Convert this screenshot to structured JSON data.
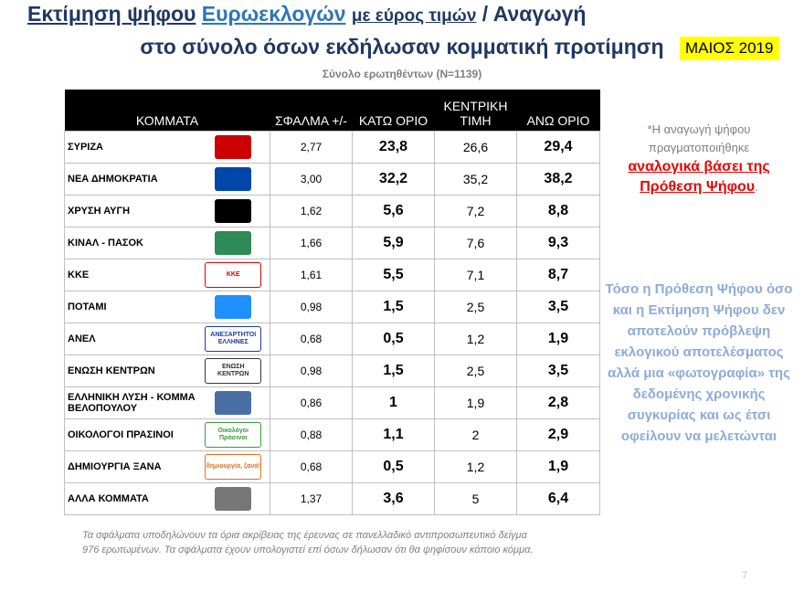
{
  "header": {
    "title_part1": "Εκτίμηση ψήφου",
    "title_part2": "Ευρωεκλογών",
    "title_part3": "με εύρος τιμών",
    "title_part4": "/ Αναγωγή",
    "title_line2": "στο σύνολο όσων εκδήλωσαν κομματική προτίμηση",
    "badge": "ΜΑΙΟΣ 2019",
    "subtitle": "Σύνολο ερωτηθέντων (Ν=1139)"
  },
  "table": {
    "columns": [
      "ΚΟΜΜΑΤΑ",
      "ΣΦΑΛΜΑ +/-",
      "ΚΑΤΩ ΟΡΙΟ",
      "ΚΕΝΤΡΙΚΗ ΤΙΜΗ",
      "ΑΝΩ ΟΡΙΟ"
    ],
    "rows": [
      {
        "name": "ΣΥΡΙΖΑ",
        "error": "2,77",
        "low": "23,8",
        "mid": "26,6",
        "high": "29,4"
      },
      {
        "name": "ΝΕΑ ΔΗΜΟΚΡΑΤΙΑ",
        "error": "3,00",
        "low": "32,2",
        "mid": "35,2",
        "high": "38,2"
      },
      {
        "name": "ΧΡΥΣΗ ΑΥΓΗ",
        "error": "1,62",
        "low": "5,6",
        "mid": "7,2",
        "high": "8,8"
      },
      {
        "name": "ΚΙΝΑΛ - ΠΑΣΟΚ",
        "error": "1,66",
        "low": "5,9",
        "mid": "7,6",
        "high": "9,3"
      },
      {
        "name": "ΚΚΕ",
        "logo": "ΚΚΕ",
        "error": "1,61",
        "low": "5,5",
        "mid": "7,1",
        "high": "8,7"
      },
      {
        "name": "ΠΟΤΑΜΙ",
        "error": "0,98",
        "low": "1,5",
        "mid": "2,5",
        "high": "3,5"
      },
      {
        "name": "ΑΝΕΛ",
        "logo": "ΑΝΕΞΑΡΤΗΤΟΙ ΕΛΛΗΝΕΣ",
        "error": "0,68",
        "low": "0,5",
        "mid": "1,2",
        "high": "1,9"
      },
      {
        "name": "ΕΝΩΣΗ ΚΕΝΤΡΩΝ",
        "logo": "ΕΝΩΣΗ ΚΕΝΤΡΩΝ",
        "error": "0,98",
        "low": "1,5",
        "mid": "2,5",
        "high": "3,5"
      },
      {
        "name": "ΕΛΛΗΝΙΚΗ ΛΥΣΗ - ΚΟΜΜΑ ΒΕΛΟΠΟΥΛΟΥ",
        "error": "0,86",
        "low": "1",
        "mid": "1,9",
        "high": "2,8"
      },
      {
        "name": "ΟΙΚΟΛΟΓΟΙ ΠΡΑΣΙΝΟΙ",
        "logo": "Οικολόγοι Πράσινοι",
        "error": "0,88",
        "low": "1,1",
        "mid": "2",
        "high": "2,9"
      },
      {
        "name": "ΔΗΜΙΟΥΡΓΙΑ ΞΑΝΑ",
        "logo": "δημιουργία, ξανά!",
        "error": "0,68",
        "low": "0,5",
        "mid": "1,2",
        "high": "1,9"
      },
      {
        "name": "ΑΛΛΑ ΚΟΜΜΑΤΑ",
        "error": "1,37",
        "low": "3,6",
        "mid": "5",
        "high": "6,4"
      }
    ]
  },
  "notes": {
    "note1_start": "*Η αναγωγή ψήφου πραγματοποιήθηκε",
    "note1_red": "αναλογικά βάσει της Πρόθεση Ψήφου",
    "note1_end": ".",
    "note2": "Τόσο η Πρόθεση Ψήφου όσο και η Εκτίμηση Ψήφου δεν αποτελούν πρόβλεψη εκλογικού αποτελέσματος αλλά μια «φωτογραφία» της δεδομένης χρονικής συγκυρίας και ως έτσι οφείλουν να μελετώνται"
  },
  "footer": {
    "line1": "Τα σφάλματα υποδηλώνουν τα όρια ακρίβειας της έρευνας σε πανελλαδικό αντιπροσωπευτικό δείγμα",
    "line2": "976 ερωτωμένων. Τα σφάλματα έχουν υπολογιστεί επί όσων δήλωσαν ότι θα ψηφίσουν κάποιο κόμμα.",
    "page": "7"
  }
}
